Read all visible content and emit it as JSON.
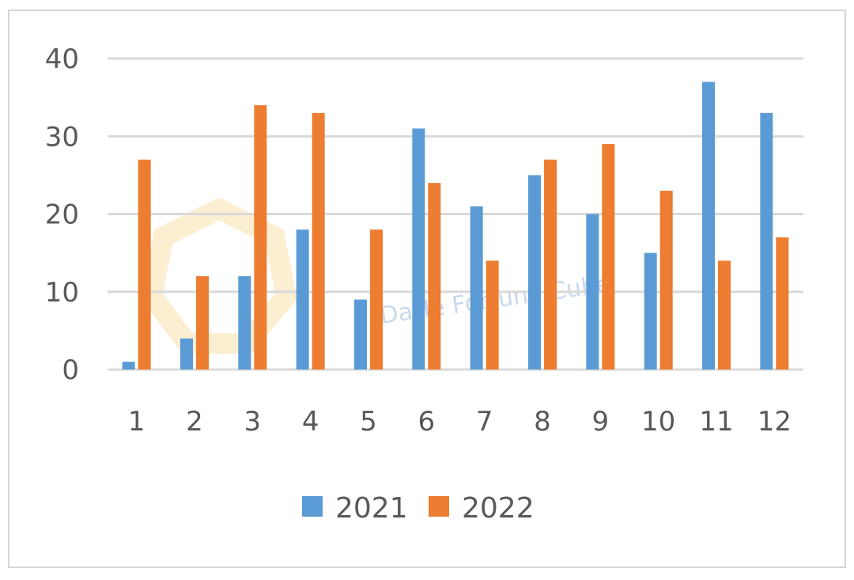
{
  "chart_data": {
    "type": "bar",
    "title": "",
    "xlabel": "",
    "ylabel": "",
    "categories": [
      "1",
      "2",
      "3",
      "4",
      "5",
      "6",
      "7",
      "8",
      "9",
      "10",
      "11",
      "12"
    ],
    "series": [
      {
        "name": "2021",
        "color": "#5b9bd5",
        "values": [
          1,
          4,
          12,
          18,
          9,
          31,
          21,
          25,
          20,
          15,
          37,
          33
        ]
      },
      {
        "name": "2022",
        "color": "#ed7d31",
        "values": [
          27,
          12,
          34,
          33,
          18,
          24,
          14,
          27,
          29,
          23,
          14,
          17
        ]
      }
    ],
    "ylim": [
      0,
      40
    ],
    "yticks": [
      0,
      10,
      20,
      30,
      40
    ],
    "grid": true,
    "gridColor": "#d9d9d9",
    "legend_position": "bottom"
  },
  "watermark": {
    "text": "DaHe Fortune Cube"
  }
}
